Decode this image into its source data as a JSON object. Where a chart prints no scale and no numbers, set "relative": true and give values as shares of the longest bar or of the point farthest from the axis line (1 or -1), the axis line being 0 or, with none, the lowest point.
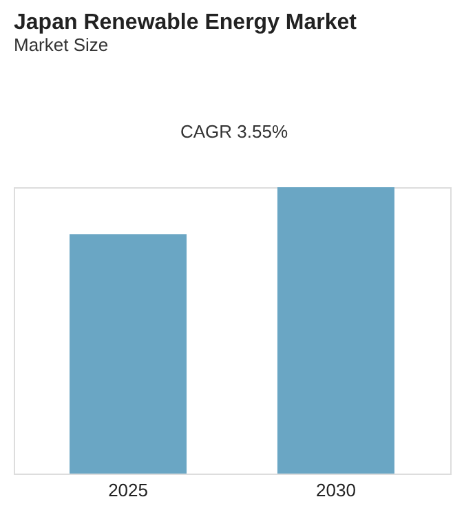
{
  "chart_data": {
    "type": "bar",
    "title": "Japan Renewable Energy Market",
    "subtitle": "Market Size",
    "annotations": [
      "CAGR 3.55%"
    ],
    "categories": [
      "2025",
      "2030"
    ],
    "values": [
      0.836,
      1
    ],
    "color": "#6aa6c4",
    "relative": true
  }
}
